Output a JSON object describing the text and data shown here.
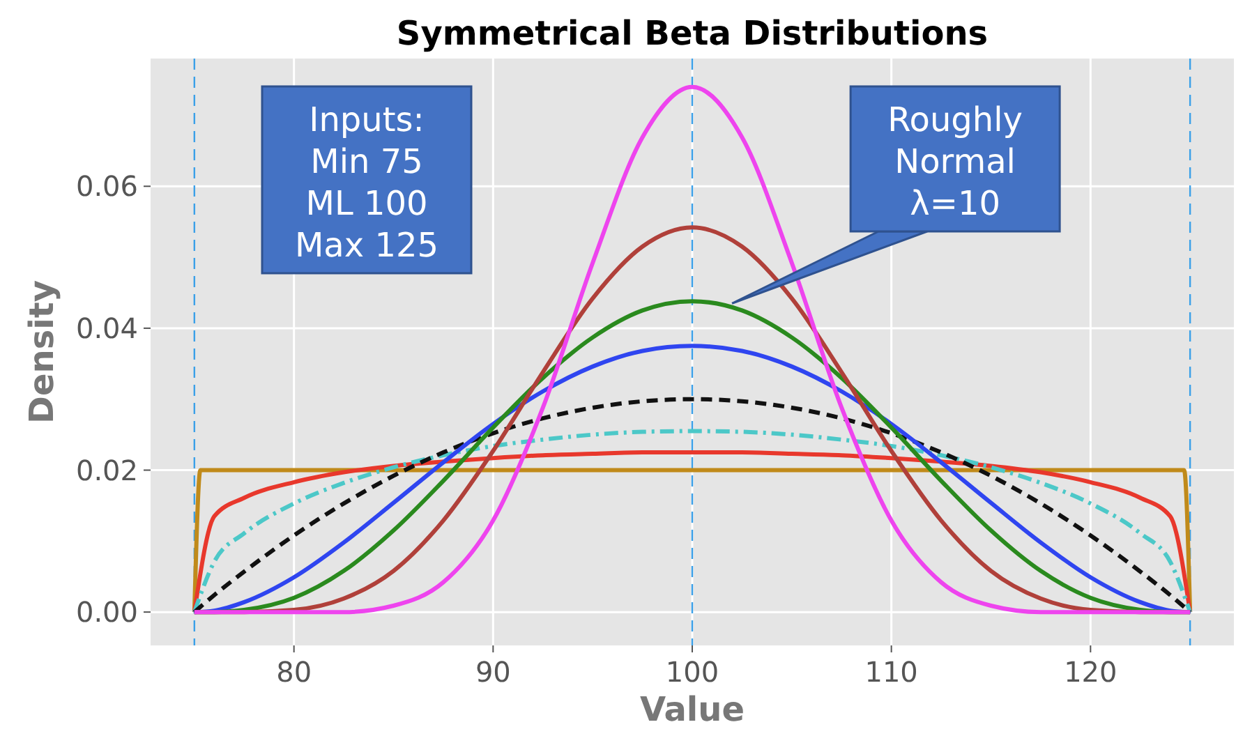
{
  "chart_data": {
    "type": "line",
    "title": "Symmetrical Beta Distributions",
    "xlabel": "Value",
    "ylabel": "Density",
    "x": [
      75,
      76,
      77.5,
      80,
      82.5,
      85,
      87.5,
      90,
      92.5,
      95,
      97.5,
      100,
      102.5,
      105,
      107.5,
      110,
      112.5,
      115,
      117.5,
      120,
      122.5,
      124,
      125
    ],
    "xlim": [
      72.8,
      127.2
    ],
    "xticks": [
      80,
      90,
      100,
      110,
      120
    ],
    "ylim": [
      -0.0047,
      0.078
    ],
    "yticks": [
      {
        "value": 0,
        "label": "0.00"
      },
      {
        "value": 0.02,
        "label": "0.02"
      },
      {
        "value": 0.04,
        "label": "0.04"
      },
      {
        "value": 0.06,
        "label": "0.06"
      }
    ],
    "grid": true,
    "marker": "none",
    "series": [
      {
        "color": "#c08a1a",
        "line_style": "solid",
        "x": [
          75,
          75.3,
          100,
          124.7,
          125
        ],
        "values": [
          0,
          0.02,
          0.02,
          0.02,
          0
        ]
      },
      {
        "color": "#e8382c",
        "line_style": "solid",
        "values": [
          0,
          0.0135,
          0.0161,
          0.0183,
          0.0197,
          0.0206,
          0.0212,
          0.0217,
          0.0221,
          0.0223,
          0.0225,
          0.0225,
          0.0225,
          0.0223,
          0.0221,
          0.0217,
          0.0212,
          0.0206,
          0.0197,
          0.0183,
          0.0161,
          0.0135,
          0
        ]
      },
      {
        "color": "#4cc8c8",
        "line_style": "dashdot",
        "values": [
          0,
          0.0071,
          0.0111,
          0.0153,
          0.0182,
          0.0204,
          0.0221,
          0.0234,
          0.0243,
          0.025,
          0.0254,
          0.0255,
          0.0254,
          0.025,
          0.0243,
          0.0234,
          0.0221,
          0.0204,
          0.0182,
          0.0153,
          0.0111,
          0.0071,
          0
        ]
      },
      {
        "color": "#111111",
        "line_style": "dashed",
        "values": [
          0,
          0.0024,
          0.0057,
          0.0108,
          0.0153,
          0.0192,
          0.0225,
          0.0252,
          0.0273,
          0.0288,
          0.0297,
          0.03,
          0.0297,
          0.0288,
          0.0273,
          0.0252,
          0.0225,
          0.0192,
          0.0153,
          0.0108,
          0.0057,
          0.0024,
          0
        ]
      },
      {
        "color": "#2f45f0",
        "line_style": "solid",
        "values": [
          0,
          0.0002,
          0.0014,
          0.0049,
          0.0098,
          0.0154,
          0.0211,
          0.0265,
          0.0311,
          0.0346,
          0.0368,
          0.0375,
          0.0368,
          0.0346,
          0.0311,
          0.0265,
          0.0211,
          0.0154,
          0.0098,
          0.0049,
          0.0014,
          0.0002,
          0
        ]
      },
      {
        "color": "#2a8a1e",
        "line_style": "solid",
        "values": [
          0,
          0,
          0.0003,
          0.002,
          0.0058,
          0.0115,
          0.0185,
          0.026,
          0.033,
          0.0387,
          0.0425,
          0.0438,
          0.0425,
          0.0387,
          0.033,
          0.026,
          0.0185,
          0.0115,
          0.0058,
          0.002,
          0.0003,
          0,
          0
        ]
      },
      {
        "color": "#b0403a",
        "line_style": "solid",
        "values": [
          0,
          0,
          0,
          0.0003,
          0.0019,
          0.0058,
          0.0129,
          0.0227,
          0.0338,
          0.0442,
          0.0515,
          0.0542,
          0.0515,
          0.0442,
          0.0338,
          0.0227,
          0.0129,
          0.0058,
          0.0019,
          0.0003,
          0,
          0,
          0
        ]
      },
      {
        "color": "#ee44ee",
        "line_style": "solid",
        "values": [
          0,
          0,
          0,
          0,
          0,
          0.0009,
          0.0042,
          0.0129,
          0.0288,
          0.0492,
          0.0669,
          0.074,
          0.0669,
          0.0492,
          0.0288,
          0.0129,
          0.0042,
          0.0009,
          0,
          0,
          0,
          0,
          0
        ]
      }
    ],
    "ref_lines": [
      {
        "axis": "x",
        "value": 75,
        "color": "#3ba0e8",
        "line_style": "dashed"
      },
      {
        "axis": "x",
        "value": 100,
        "color": "#3ba0e8",
        "line_style": "dashed"
      },
      {
        "axis": "x",
        "value": 125,
        "color": "#3ba0e8",
        "line_style": "dashed"
      }
    ],
    "annotations": [
      "Inputs:\nMin 75\nML 100\nMax 125",
      {
        "text": "Roughly\nNormal\nλ=10",
        "x": 102,
        "y": 0.0435
      }
    ]
  }
}
